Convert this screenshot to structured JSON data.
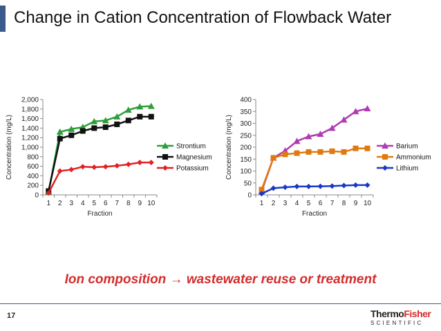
{
  "slide": {
    "title": "Change in Cation Concentration of Flowback Water",
    "tagline": "Ion composition → wastewater reuse or treatment",
    "page_number": "17",
    "logo_top_a": "Thermo",
    "logo_top_b": "Fisher",
    "logo_bottom": "SCIENTIFIC",
    "accent_color": "#3a5a8c",
    "tagline_color": "#d42b2b"
  },
  "chart_data": [
    {
      "type": "line",
      "xlabel": "Fraction",
      "ylabel": "Concentration (mg/L)",
      "categories": [
        "1",
        "2",
        "3",
        "4",
        "5",
        "6",
        "7",
        "8",
        "9",
        "10"
      ],
      "ylim": [
        0,
        2000
      ],
      "yticks": [
        0,
        200,
        400,
        600,
        800,
        1000,
        1200,
        1400,
        1600,
        1800,
        2000
      ],
      "ytick_labels": [
        "0",
        "200",
        "400",
        "600",
        "800",
        "1,000",
        "1,200",
        "1,400",
        "1,600",
        "1,800",
        "2,000"
      ],
      "legend_position": "right",
      "series": [
        {
          "name": "Strontium",
          "color": "#2e9e3a",
          "marker": "triangle",
          "values": [
            60,
            1320,
            1380,
            1420,
            1540,
            1560,
            1640,
            1780,
            1850,
            1860
          ]
        },
        {
          "name": "Magnesium",
          "color": "#111111",
          "marker": "square",
          "values": [
            80,
            1180,
            1250,
            1340,
            1400,
            1420,
            1480,
            1560,
            1640,
            1640
          ]
        },
        {
          "name": "Potassium",
          "color": "#e02222",
          "marker": "diamond",
          "values": [
            40,
            500,
            530,
            590,
            580,
            590,
            610,
            640,
            680,
            680
          ]
        }
      ]
    },
    {
      "type": "line",
      "xlabel": "Fraction",
      "ylabel": "Concentration (mg/L)",
      "categories": [
        "1",
        "2",
        "3",
        "4",
        "5",
        "6",
        "7",
        "8",
        "9",
        "10"
      ],
      "ylim": [
        0,
        400
      ],
      "yticks": [
        0,
        50,
        100,
        150,
        200,
        250,
        300,
        350,
        400
      ],
      "ytick_labels": [
        "0",
        "50",
        "100",
        "150",
        "200",
        "250",
        "300",
        "350",
        "400"
      ],
      "legend_position": "right",
      "series": [
        {
          "name": "Barium",
          "color": "#b03ab0",
          "marker": "triangle",
          "values": [
            15,
            155,
            185,
            225,
            245,
            255,
            280,
            315,
            350,
            362
          ]
        },
        {
          "name": "Ammonium",
          "color": "#e07a10",
          "marker": "square",
          "values": [
            22,
            155,
            170,
            175,
            180,
            180,
            183,
            180,
            195,
            195
          ]
        },
        {
          "name": "Lithium",
          "color": "#1838c8",
          "marker": "diamond",
          "values": [
            5,
            28,
            32,
            35,
            35,
            36,
            37,
            39,
            41,
            41
          ]
        }
      ]
    }
  ]
}
